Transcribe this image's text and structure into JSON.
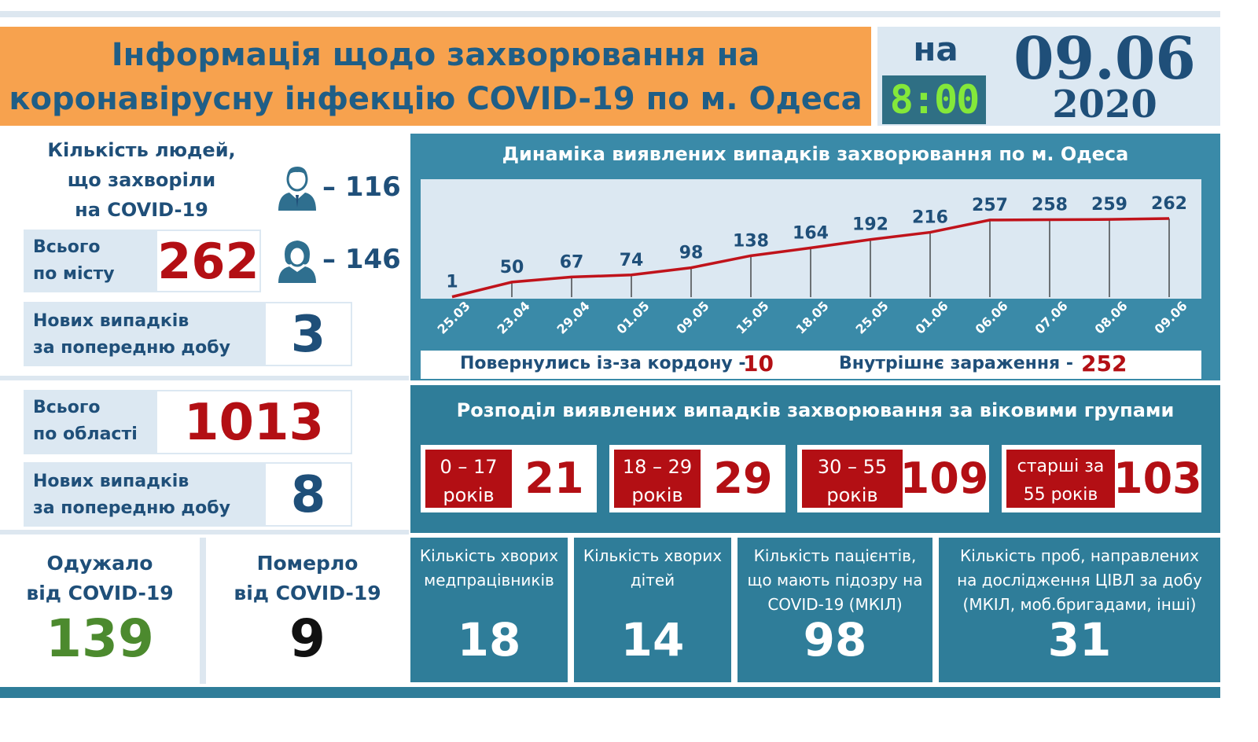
{
  "header": {
    "title_line1": "Інформація щодо захворювання на",
    "title_line2": "коронавірусну інфекцію COVID-19 по м. Одеса",
    "na": "на",
    "time": "8:00",
    "date_day": "09.06",
    "date_year": "2020"
  },
  "city": {
    "people_title_line1": "Кількість людей,",
    "people_title_line2": "що захворіли",
    "people_title_line3": "на COVID-19",
    "male_count": "– 116",
    "female_count": "– 146",
    "total_label_line1": "Всього",
    "total_label_line2": "по місту",
    "total_value": "262",
    "new_label_line1": "Нових випадків",
    "new_label_line2": "за попередню добу",
    "new_value": "3"
  },
  "region": {
    "total_label_line1": "Всього",
    "total_label_line2": "по області",
    "total_value": "1013",
    "new_label_line1": "Нових випадків",
    "new_label_line2": "за попередню добу",
    "new_value": "8"
  },
  "recovered": {
    "label_line1": "Одужало",
    "label_line2": "від COVID-19",
    "value": "139"
  },
  "died": {
    "label_line1": "Померло",
    "label_line2": "від COVID-19",
    "value": "9"
  },
  "chart_data": {
    "type": "line",
    "title": "Динаміка виявлених випадків захворювання по м. Одеса",
    "categories": [
      "25.03",
      "23.04",
      "29.04",
      "01.05",
      "09.05",
      "15.05",
      "18.05",
      "25.05",
      "01.06",
      "06.06",
      "07.06",
      "08.06",
      "09.06"
    ],
    "values": [
      1,
      50,
      67,
      74,
      98,
      138,
      164,
      192,
      216,
      257,
      258,
      259,
      262
    ],
    "series_color": "#c0131b",
    "grid": false
  },
  "border": {
    "returned_label": "Повернулись із-за кордону -",
    "returned_value": "10",
    "internal_label": "Внутрішнє зараження -",
    "internal_value": "252"
  },
  "age": {
    "title": "Розподіл виявлених випадків захворювання за віковими групами",
    "groups": [
      {
        "line1": "0 – 17",
        "line2": "років",
        "value": "21"
      },
      {
        "line1": "18 – 29",
        "line2": "років",
        "value": "29"
      },
      {
        "line1": "30 – 55",
        "line2": "років",
        "value": "109"
      },
      {
        "line1": "старші за",
        "line2": "55 років",
        "value": "103"
      }
    ]
  },
  "stats": [
    {
      "line1": "Кількість хворих",
      "line2": "медпрацівників",
      "line3": "",
      "value": "18"
    },
    {
      "line1": "Кількість хворих",
      "line2": "дітей",
      "line3": "",
      "value": "14"
    },
    {
      "line1": "Кількість пацієнтів,",
      "line2": "що мають підозру на",
      "line3": "COVID-19 (МКІЛ)",
      "value": "98"
    },
    {
      "line1": "Кількість проб, направлених",
      "line2": "на дослідження ЦІВЛ за добу",
      "line3": "(МКІЛ, моб.бригадами, інші)",
      "value": "31"
    }
  ],
  "colors": {
    "accent_red": "#b30f14",
    "header_orange": "#f7a24e",
    "panel_teal": "#2f7d99",
    "recovered_green": "#4c8a2e"
  },
  "icons": [
    "male-person-icon",
    "female-person-icon"
  ]
}
